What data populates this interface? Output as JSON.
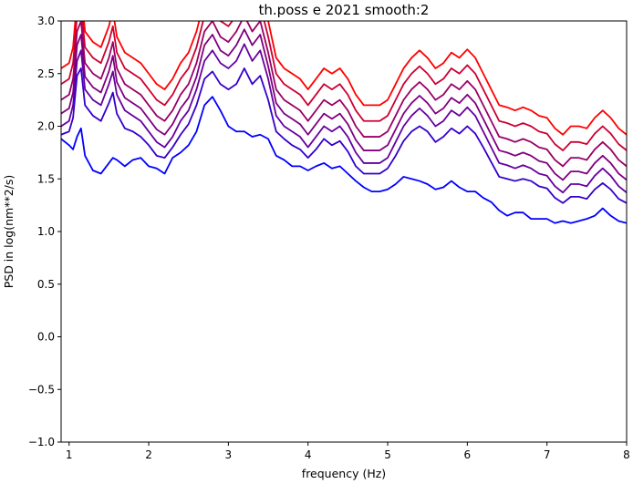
{
  "chart_data": {
    "type": "line",
    "title": "th.poss e 2021 smooth:2",
    "xlabel": "frequency (Hz)",
    "ylabel": "PSD in log(nm**2/s)",
    "xlim": [
      0.9,
      8.0
    ],
    "ylim": [
      -1.0,
      3.0
    ],
    "xticks": [
      "1",
      "2",
      "3",
      "4",
      "5",
      "6",
      "7",
      "8"
    ],
    "yticks": [
      "−1.0",
      "−0.5",
      "0.0",
      "0.5",
      "1.0",
      "1.5",
      "2.0",
      "2.5",
      "3.0"
    ],
    "grid": false,
    "legend": "none",
    "series": [
      {
        "color": "#ff0000",
        "x": [
          0.9,
          1.0,
          1.05,
          1.1,
          1.15,
          1.2,
          1.3,
          1.4,
          1.5,
          1.55,
          1.6,
          1.7,
          1.8,
          1.9,
          2.0,
          2.1,
          2.2,
          2.3,
          2.4,
          2.5,
          2.6,
          2.7,
          2.8,
          2.9,
          3.0,
          3.1,
          3.2,
          3.3,
          3.4,
          3.5,
          3.6,
          3.7,
          3.8,
          3.9,
          4.0,
          4.1,
          4.2,
          4.3,
          4.4,
          4.5,
          4.6,
          4.7,
          4.8,
          4.9,
          5.0,
          5.1,
          5.2,
          5.3,
          5.4,
          5.5,
          5.6,
          5.7,
          5.8,
          5.9,
          6.0,
          6.1,
          6.2,
          6.3,
          6.4,
          6.5,
          6.6,
          6.7,
          6.8,
          6.9,
          7.0,
          7.1,
          7.2,
          7.3,
          7.4,
          7.5,
          7.6,
          7.7,
          7.8,
          7.9,
          8.0
        ],
        "y": [
          2.55,
          2.6,
          2.75,
          3.2,
          3.3,
          2.9,
          2.8,
          2.75,
          2.95,
          3.1,
          2.85,
          2.7,
          2.65,
          2.6,
          2.5,
          2.4,
          2.35,
          2.45,
          2.6,
          2.7,
          2.9,
          3.2,
          3.3,
          3.15,
          3.1,
          3.2,
          3.35,
          3.2,
          3.3,
          3.0,
          2.65,
          2.55,
          2.5,
          2.45,
          2.35,
          2.45,
          2.55,
          2.5,
          2.55,
          2.45,
          2.3,
          2.2,
          2.2,
          2.2,
          2.25,
          2.4,
          2.55,
          2.65,
          2.72,
          2.65,
          2.55,
          2.6,
          2.7,
          2.65,
          2.73,
          2.65,
          2.5,
          2.35,
          2.2,
          2.18,
          2.15,
          2.18,
          2.15,
          2.1,
          2.08,
          1.98,
          1.92,
          2.0,
          2.0,
          1.98,
          2.08,
          2.15,
          2.08,
          1.98,
          1.92
        ]
      },
      {
        "color": "#cc0033",
        "x": [
          0.9,
          1.0,
          1.05,
          1.1,
          1.15,
          1.2,
          1.3,
          1.4,
          1.5,
          1.55,
          1.6,
          1.7,
          1.8,
          1.9,
          2.0,
          2.1,
          2.2,
          2.3,
          2.4,
          2.5,
          2.6,
          2.7,
          2.8,
          2.9,
          3.0,
          3.1,
          3.2,
          3.3,
          3.4,
          3.5,
          3.6,
          3.7,
          3.8,
          3.9,
          4.0,
          4.1,
          4.2,
          4.3,
          4.4,
          4.5,
          4.6,
          4.7,
          4.8,
          4.9,
          5.0,
          5.1,
          5.2,
          5.3,
          5.4,
          5.5,
          5.6,
          5.7,
          5.8,
          5.9,
          6.0,
          6.1,
          6.2,
          6.3,
          6.4,
          6.5,
          6.6,
          6.7,
          6.8,
          6.9,
          7.0,
          7.1,
          7.2,
          7.3,
          7.4,
          7.5,
          7.6,
          7.7,
          7.8,
          7.9,
          8.0
        ],
        "y": [
          2.4,
          2.45,
          2.6,
          3.05,
          3.15,
          2.75,
          2.65,
          2.6,
          2.8,
          2.95,
          2.7,
          2.55,
          2.5,
          2.45,
          2.35,
          2.25,
          2.2,
          2.3,
          2.45,
          2.55,
          2.75,
          3.05,
          3.15,
          3.0,
          2.95,
          3.05,
          3.2,
          3.05,
          3.15,
          2.85,
          2.5,
          2.4,
          2.35,
          2.3,
          2.2,
          2.3,
          2.4,
          2.35,
          2.4,
          2.3,
          2.15,
          2.05,
          2.05,
          2.05,
          2.1,
          2.25,
          2.4,
          2.5,
          2.57,
          2.5,
          2.4,
          2.45,
          2.55,
          2.5,
          2.58,
          2.5,
          2.35,
          2.2,
          2.05,
          2.03,
          2.0,
          2.03,
          2.0,
          1.95,
          1.93,
          1.83,
          1.77,
          1.85,
          1.85,
          1.83,
          1.93,
          2.0,
          1.93,
          1.83,
          1.77
        ]
      },
      {
        "color": "#990066",
        "x": [
          0.9,
          1.0,
          1.05,
          1.1,
          1.15,
          1.2,
          1.3,
          1.4,
          1.5,
          1.55,
          1.6,
          1.7,
          1.8,
          1.9,
          2.0,
          2.1,
          2.2,
          2.3,
          2.4,
          2.5,
          2.6,
          2.7,
          2.8,
          2.9,
          3.0,
          3.1,
          3.2,
          3.3,
          3.4,
          3.5,
          3.6,
          3.7,
          3.8,
          3.9,
          4.0,
          4.1,
          4.2,
          4.3,
          4.4,
          4.5,
          4.6,
          4.7,
          4.8,
          4.9,
          5.0,
          5.1,
          5.2,
          5.3,
          5.4,
          5.5,
          5.6,
          5.7,
          5.8,
          5.9,
          6.0,
          6.1,
          6.2,
          6.3,
          6.4,
          6.5,
          6.6,
          6.7,
          6.8,
          6.9,
          7.0,
          7.1,
          7.2,
          7.3,
          7.4,
          7.5,
          7.6,
          7.7,
          7.8,
          7.9,
          8.0
        ],
        "y": [
          2.25,
          2.3,
          2.45,
          2.9,
          3.0,
          2.6,
          2.5,
          2.45,
          2.65,
          2.8,
          2.55,
          2.4,
          2.35,
          2.3,
          2.2,
          2.1,
          2.05,
          2.15,
          2.3,
          2.4,
          2.6,
          2.9,
          3.0,
          2.85,
          2.8,
          2.9,
          3.05,
          2.9,
          3.0,
          2.7,
          2.35,
          2.25,
          2.2,
          2.15,
          2.05,
          2.15,
          2.25,
          2.2,
          2.25,
          2.15,
          2.0,
          1.9,
          1.9,
          1.9,
          1.95,
          2.1,
          2.25,
          2.35,
          2.42,
          2.35,
          2.25,
          2.3,
          2.4,
          2.35,
          2.43,
          2.35,
          2.2,
          2.05,
          1.9,
          1.88,
          1.85,
          1.88,
          1.85,
          1.8,
          1.78,
          1.68,
          1.62,
          1.7,
          1.7,
          1.68,
          1.78,
          1.85,
          1.78,
          1.68,
          1.62
        ]
      },
      {
        "color": "#7f0080",
        "x": [
          0.9,
          1.0,
          1.05,
          1.1,
          1.15,
          1.2,
          1.3,
          1.4,
          1.5,
          1.55,
          1.6,
          1.7,
          1.8,
          1.9,
          2.0,
          2.1,
          2.2,
          2.3,
          2.4,
          2.5,
          2.6,
          2.7,
          2.8,
          2.9,
          3.0,
          3.1,
          3.2,
          3.3,
          3.4,
          3.5,
          3.6,
          3.7,
          3.8,
          3.9,
          4.0,
          4.1,
          4.2,
          4.3,
          4.4,
          4.5,
          4.6,
          4.7,
          4.8,
          4.9,
          5.0,
          5.1,
          5.2,
          5.3,
          5.4,
          5.5,
          5.6,
          5.7,
          5.8,
          5.9,
          6.0,
          6.1,
          6.2,
          6.3,
          6.4,
          6.5,
          6.6,
          6.7,
          6.8,
          6.9,
          7.0,
          7.1,
          7.2,
          7.3,
          7.4,
          7.5,
          7.6,
          7.7,
          7.8,
          7.9,
          8.0
        ],
        "y": [
          2.12,
          2.17,
          2.32,
          2.77,
          2.87,
          2.47,
          2.37,
          2.32,
          2.52,
          2.67,
          2.42,
          2.27,
          2.22,
          2.17,
          2.07,
          1.97,
          1.92,
          2.02,
          2.17,
          2.27,
          2.47,
          2.77,
          2.87,
          2.72,
          2.67,
          2.77,
          2.92,
          2.77,
          2.87,
          2.57,
          2.22,
          2.12,
          2.07,
          2.02,
          1.92,
          2.02,
          2.12,
          2.07,
          2.12,
          2.02,
          1.87,
          1.77,
          1.77,
          1.77,
          1.82,
          1.97,
          2.12,
          2.22,
          2.29,
          2.22,
          2.12,
          2.17,
          2.27,
          2.22,
          2.3,
          2.22,
          2.07,
          1.92,
          1.77,
          1.75,
          1.72,
          1.75,
          1.72,
          1.67,
          1.65,
          1.55,
          1.49,
          1.57,
          1.57,
          1.55,
          1.65,
          1.72,
          1.65,
          1.55,
          1.49
        ]
      },
      {
        "color": "#6600a0",
        "x": [
          0.9,
          1.0,
          1.05,
          1.1,
          1.15,
          1.2,
          1.3,
          1.4,
          1.5,
          1.55,
          1.6,
          1.7,
          1.8,
          1.9,
          2.0,
          2.1,
          2.2,
          2.3,
          2.4,
          2.5,
          2.6,
          2.7,
          2.8,
          2.9,
          3.0,
          3.1,
          3.2,
          3.3,
          3.4,
          3.5,
          3.6,
          3.7,
          3.8,
          3.9,
          4.0,
          4.1,
          4.2,
          4.3,
          4.4,
          4.5,
          4.6,
          4.7,
          4.8,
          4.9,
          5.0,
          5.1,
          5.2,
          5.3,
          5.4,
          5.5,
          5.6,
          5.7,
          5.8,
          5.9,
          6.0,
          6.1,
          6.2,
          6.3,
          6.4,
          6.5,
          6.6,
          6.7,
          6.8,
          6.9,
          7.0,
          7.1,
          7.2,
          7.3,
          7.4,
          7.5,
          7.6,
          7.7,
          7.8,
          7.9,
          8.0
        ],
        "y": [
          2.0,
          2.05,
          2.2,
          2.62,
          2.72,
          2.35,
          2.25,
          2.2,
          2.4,
          2.52,
          2.3,
          2.15,
          2.1,
          2.05,
          1.95,
          1.85,
          1.8,
          1.9,
          2.05,
          2.15,
          2.35,
          2.62,
          2.72,
          2.6,
          2.55,
          2.62,
          2.78,
          2.62,
          2.72,
          2.45,
          2.1,
          2.0,
          1.95,
          1.9,
          1.8,
          1.9,
          2.0,
          1.95,
          2.0,
          1.9,
          1.75,
          1.65,
          1.65,
          1.65,
          1.7,
          1.85,
          2.0,
          2.1,
          2.17,
          2.1,
          2.0,
          2.05,
          2.15,
          2.1,
          2.18,
          2.1,
          1.95,
          1.8,
          1.65,
          1.63,
          1.6,
          1.63,
          1.6,
          1.55,
          1.53,
          1.43,
          1.37,
          1.45,
          1.45,
          1.43,
          1.53,
          1.6,
          1.53,
          1.43,
          1.37
        ]
      },
      {
        "color": "#3300cc",
        "x": [
          0.9,
          1.0,
          1.05,
          1.1,
          1.15,
          1.2,
          1.3,
          1.4,
          1.5,
          1.55,
          1.6,
          1.7,
          1.8,
          1.9,
          2.0,
          2.1,
          2.2,
          2.3,
          2.4,
          2.5,
          2.6,
          2.7,
          2.8,
          2.9,
          3.0,
          3.1,
          3.2,
          3.3,
          3.4,
          3.5,
          3.6,
          3.7,
          3.8,
          3.9,
          4.0,
          4.1,
          4.2,
          4.3,
          4.4,
          4.5,
          4.6,
          4.7,
          4.8,
          4.9,
          5.0,
          5.1,
          5.2,
          5.3,
          5.4,
          5.5,
          5.6,
          5.7,
          5.8,
          5.9,
          6.0,
          6.1,
          6.2,
          6.3,
          6.4,
          6.5,
          6.6,
          6.7,
          6.8,
          6.9,
          7.0,
          7.1,
          7.2,
          7.3,
          7.4,
          7.5,
          7.6,
          7.7,
          7.8,
          7.9,
          8.0
        ],
        "y": [
          1.92,
          1.95,
          2.08,
          2.48,
          2.55,
          2.2,
          2.1,
          2.05,
          2.22,
          2.32,
          2.12,
          1.98,
          1.95,
          1.9,
          1.82,
          1.72,
          1.7,
          1.8,
          1.92,
          2.02,
          2.2,
          2.45,
          2.52,
          2.4,
          2.35,
          2.4,
          2.55,
          2.4,
          2.48,
          2.25,
          1.95,
          1.88,
          1.82,
          1.78,
          1.7,
          1.78,
          1.88,
          1.82,
          1.86,
          1.76,
          1.62,
          1.55,
          1.55,
          1.55,
          1.6,
          1.72,
          1.86,
          1.95,
          2.0,
          1.95,
          1.85,
          1.9,
          1.98,
          1.93,
          2.0,
          1.93,
          1.8,
          1.66,
          1.52,
          1.5,
          1.48,
          1.5,
          1.48,
          1.43,
          1.41,
          1.32,
          1.27,
          1.33,
          1.33,
          1.31,
          1.4,
          1.46,
          1.4,
          1.31,
          1.27
        ]
      },
      {
        "color": "#0000ff",
        "x": [
          0.9,
          1.0,
          1.05,
          1.1,
          1.15,
          1.2,
          1.3,
          1.4,
          1.5,
          1.55,
          1.6,
          1.7,
          1.8,
          1.9,
          2.0,
          2.1,
          2.2,
          2.3,
          2.4,
          2.5,
          2.6,
          2.7,
          2.8,
          2.9,
          3.0,
          3.1,
          3.2,
          3.3,
          3.4,
          3.5,
          3.6,
          3.7,
          3.8,
          3.9,
          4.0,
          4.1,
          4.2,
          4.3,
          4.4,
          4.5,
          4.6,
          4.7,
          4.8,
          4.9,
          5.0,
          5.1,
          5.2,
          5.3,
          5.4,
          5.5,
          5.6,
          5.7,
          5.8,
          5.9,
          6.0,
          6.1,
          6.2,
          6.3,
          6.4,
          6.5,
          6.6,
          6.7,
          6.8,
          6.9,
          7.0,
          7.1,
          7.2,
          7.3,
          7.4,
          7.5,
          7.6,
          7.7,
          7.8,
          7.9,
          8.0
        ],
        "y": [
          1.88,
          1.82,
          1.78,
          1.9,
          1.98,
          1.72,
          1.58,
          1.55,
          1.65,
          1.7,
          1.68,
          1.62,
          1.68,
          1.7,
          1.62,
          1.6,
          1.55,
          1.7,
          1.75,
          1.82,
          1.95,
          2.2,
          2.28,
          2.15,
          2.0,
          1.95,
          1.95,
          1.9,
          1.92,
          1.88,
          1.72,
          1.68,
          1.62,
          1.62,
          1.58,
          1.62,
          1.65,
          1.6,
          1.62,
          1.55,
          1.48,
          1.42,
          1.38,
          1.38,
          1.4,
          1.45,
          1.52,
          1.5,
          1.48,
          1.45,
          1.4,
          1.42,
          1.48,
          1.42,
          1.38,
          1.38,
          1.32,
          1.28,
          1.2,
          1.15,
          1.18,
          1.18,
          1.12,
          1.12,
          1.12,
          1.08,
          1.1,
          1.08,
          1.1,
          1.12,
          1.15,
          1.22,
          1.15,
          1.1,
          1.08
        ]
      }
    ]
  }
}
